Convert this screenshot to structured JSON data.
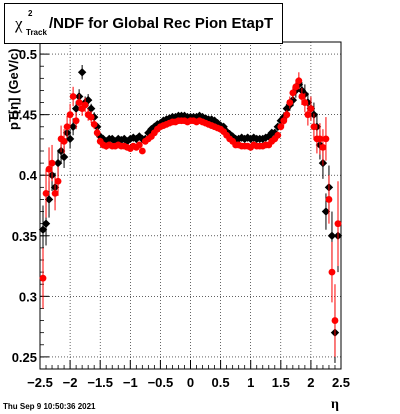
{
  "title": {
    "chi_symbol": "χ",
    "superscript": "2",
    "subscript": "Track",
    "text": "/NDF for Global Rec Pion EtapT"
  },
  "timestamp": "Thu Sep  9 10:50:36 2021",
  "chart_data": {
    "type": "scatter",
    "xlabel": "η",
    "ylabel": "pT[η] (GeV/c)",
    "xlim": [
      -2.5,
      2.5
    ],
    "ylim": [
      0.24,
      0.51
    ],
    "grid": true,
    "x_ticks": [
      "−2.5",
      "−2",
      "−1.5",
      "−1",
      "−0.5",
      "0",
      "0.5",
      "1",
      "1.5",
      "2",
      "2.5"
    ],
    "y_ticks": [
      "0.25",
      "0.3",
      "0.35",
      "0.4",
      "0.45",
      "0.5"
    ],
    "x_tick_values": [
      -2.5,
      -2,
      -1.5,
      -1,
      -0.5,
      0,
      0.5,
      1,
      1.5,
      2,
      2.5
    ],
    "y_tick_values": [
      0.25,
      0.3,
      0.35,
      0.4,
      0.45,
      0.5
    ],
    "series": [
      {
        "color": "#000000",
        "marker": "diamond",
        "x": [
          -2.45,
          -2.4,
          -2.35,
          -2.3,
          -2.25,
          -2.2,
          -2.15,
          -2.1,
          -2.05,
          -2.0,
          -1.95,
          -1.9,
          -1.85,
          -1.8,
          -1.75,
          -1.7,
          -1.65,
          -1.6,
          -1.55,
          -1.5,
          -1.45,
          -1.4,
          -1.35,
          -1.3,
          -1.25,
          -1.2,
          -1.15,
          -1.1,
          -1.05,
          -1.0,
          -0.95,
          -0.9,
          -0.85,
          -0.8,
          -0.75,
          -0.7,
          -0.65,
          -0.6,
          -0.55,
          -0.5,
          -0.45,
          -0.4,
          -0.35,
          -0.3,
          -0.25,
          -0.2,
          -0.15,
          -0.1,
          -0.05,
          0.0,
          0.05,
          0.1,
          0.15,
          0.2,
          0.25,
          0.3,
          0.35,
          0.4,
          0.45,
          0.5,
          0.55,
          0.6,
          0.65,
          0.7,
          0.75,
          0.8,
          0.85,
          0.9,
          0.95,
          1.0,
          1.05,
          1.1,
          1.15,
          1.2,
          1.25,
          1.3,
          1.35,
          1.4,
          1.45,
          1.5,
          1.55,
          1.6,
          1.65,
          1.7,
          1.75,
          1.8,
          1.85,
          1.9,
          1.95,
          2.0,
          2.05,
          2.1,
          2.15,
          2.2,
          2.25,
          2.3,
          2.35,
          2.4,
          2.45
        ],
        "y": [
          0.355,
          0.36,
          0.38,
          0.4,
          0.39,
          0.41,
          0.42,
          0.415,
          0.435,
          0.43,
          0.44,
          0.455,
          0.465,
          0.485,
          0.46,
          0.462,
          0.455,
          0.448,
          0.44,
          0.432,
          0.43,
          0.428,
          0.43,
          0.43,
          0.428,
          0.43,
          0.429,
          0.43,
          0.428,
          0.43,
          0.431,
          0.43,
          0.432,
          0.43,
          0.43,
          0.435,
          0.438,
          0.44,
          0.442,
          0.443,
          0.445,
          0.446,
          0.447,
          0.448,
          0.448,
          0.449,
          0.449,
          0.449,
          0.448,
          0.448,
          0.448,
          0.448,
          0.449,
          0.448,
          0.447,
          0.446,
          0.446,
          0.445,
          0.443,
          0.441,
          0.44,
          0.436,
          0.434,
          0.432,
          0.43,
          0.43,
          0.431,
          0.43,
          0.431,
          0.43,
          0.431,
          0.43,
          0.43,
          0.43,
          0.431,
          0.432,
          0.435,
          0.435,
          0.44,
          0.445,
          0.448,
          0.455,
          0.458,
          0.462,
          0.47,
          0.475,
          0.47,
          0.467,
          0.46,
          0.455,
          0.45,
          0.44,
          0.425,
          0.41,
          0.37,
          0.39,
          0.35,
          0.27,
          0.35
        ],
        "err": [
          0.02,
          0.018,
          0.015,
          0.013,
          0.012,
          0.011,
          0.01,
          0.009,
          0.008,
          0.008,
          0.007,
          0.006,
          0.006,
          0.006,
          0.005,
          0.005,
          0.004,
          0.004,
          0.003,
          0.003,
          0.003,
          0.002,
          0.002,
          0.002,
          0.002,
          0.002,
          0.002,
          0.002,
          0.002,
          0.002,
          0.002,
          0.002,
          0.002,
          0.002,
          0.002,
          0.002,
          0.002,
          0.002,
          0.002,
          0.002,
          0.002,
          0.002,
          0.002,
          0.002,
          0.002,
          0.002,
          0.002,
          0.002,
          0.002,
          0.002,
          0.002,
          0.002,
          0.002,
          0.002,
          0.002,
          0.002,
          0.002,
          0.002,
          0.002,
          0.002,
          0.002,
          0.002,
          0.002,
          0.002,
          0.002,
          0.002,
          0.002,
          0.002,
          0.002,
          0.002,
          0.002,
          0.002,
          0.002,
          0.002,
          0.002,
          0.002,
          0.002,
          0.003,
          0.003,
          0.003,
          0.004,
          0.004,
          0.005,
          0.005,
          0.006,
          0.006,
          0.007,
          0.008,
          0.008,
          0.009,
          0.01,
          0.011,
          0.012,
          0.013,
          0.015,
          0.018,
          0.02,
          0.025,
          0.03
        ]
      },
      {
        "color": "#ff0000",
        "marker": "circle",
        "x": [
          -2.45,
          -2.4,
          -2.35,
          -2.3,
          -2.25,
          -2.2,
          -2.15,
          -2.1,
          -2.05,
          -2.0,
          -1.95,
          -1.9,
          -1.85,
          -1.8,
          -1.75,
          -1.7,
          -1.65,
          -1.6,
          -1.55,
          -1.5,
          -1.45,
          -1.4,
          -1.35,
          -1.3,
          -1.25,
          -1.2,
          -1.15,
          -1.1,
          -1.05,
          -1.0,
          -0.95,
          -0.9,
          -0.85,
          -0.8,
          -0.75,
          -0.7,
          -0.65,
          -0.6,
          -0.55,
          -0.5,
          -0.45,
          -0.4,
          -0.35,
          -0.3,
          -0.25,
          -0.2,
          -0.15,
          -0.1,
          -0.05,
          0.0,
          0.05,
          0.1,
          0.15,
          0.2,
          0.25,
          0.3,
          0.35,
          0.4,
          0.45,
          0.5,
          0.55,
          0.6,
          0.65,
          0.7,
          0.75,
          0.8,
          0.85,
          0.9,
          0.95,
          1.0,
          1.05,
          1.1,
          1.15,
          1.2,
          1.25,
          1.3,
          1.35,
          1.4,
          1.45,
          1.5,
          1.55,
          1.6,
          1.65,
          1.7,
          1.75,
          1.8,
          1.85,
          1.9,
          1.95,
          2.0,
          2.05,
          2.1,
          2.15,
          2.2,
          2.25,
          2.3,
          2.35,
          2.4,
          2.45
        ],
        "y": [
          0.315,
          0.385,
          0.405,
          0.41,
          0.385,
          0.395,
          0.43,
          0.428,
          0.44,
          0.45,
          0.465,
          0.445,
          0.46,
          0.455,
          0.458,
          0.45,
          0.448,
          0.442,
          0.435,
          0.428,
          0.425,
          0.424,
          0.425,
          0.424,
          0.424,
          0.425,
          0.424,
          0.424,
          0.423,
          0.422,
          0.424,
          0.423,
          0.425,
          0.42,
          0.428,
          0.43,
          0.432,
          0.435,
          0.438,
          0.44,
          0.441,
          0.442,
          0.443,
          0.444,
          0.444,
          0.445,
          0.445,
          0.445,
          0.444,
          0.445,
          0.445,
          0.444,
          0.445,
          0.444,
          0.443,
          0.442,
          0.441,
          0.44,
          0.439,
          0.438,
          0.436,
          0.433,
          0.43,
          0.428,
          0.425,
          0.425,
          0.424,
          0.424,
          0.424,
          0.423,
          0.425,
          0.424,
          0.424,
          0.424,
          0.425,
          0.425,
          0.428,
          0.43,
          0.433,
          0.44,
          0.445,
          0.45,
          0.46,
          0.468,
          0.473,
          0.478,
          0.465,
          0.46,
          0.45,
          0.455,
          0.44,
          0.43,
          0.43,
          0.423,
          0.43,
          0.38,
          0.32,
          0.28,
          0.36
        ],
        "err": [
          0.025,
          0.02,
          0.018,
          0.015,
          0.014,
          0.012,
          0.011,
          0.01,
          0.009,
          0.009,
          0.008,
          0.007,
          0.007,
          0.006,
          0.006,
          0.005,
          0.005,
          0.004,
          0.004,
          0.003,
          0.003,
          0.003,
          0.002,
          0.002,
          0.002,
          0.002,
          0.002,
          0.002,
          0.002,
          0.002,
          0.002,
          0.002,
          0.002,
          0.002,
          0.002,
          0.002,
          0.002,
          0.002,
          0.002,
          0.002,
          0.002,
          0.002,
          0.002,
          0.002,
          0.002,
          0.002,
          0.002,
          0.002,
          0.002,
          0.002,
          0.002,
          0.002,
          0.002,
          0.002,
          0.002,
          0.002,
          0.002,
          0.002,
          0.002,
          0.002,
          0.002,
          0.002,
          0.002,
          0.002,
          0.002,
          0.002,
          0.002,
          0.002,
          0.002,
          0.002,
          0.002,
          0.002,
          0.002,
          0.002,
          0.002,
          0.002,
          0.002,
          0.003,
          0.003,
          0.003,
          0.004,
          0.004,
          0.005,
          0.005,
          0.006,
          0.007,
          0.007,
          0.008,
          0.009,
          0.01,
          0.011,
          0.012,
          0.013,
          0.015,
          0.018,
          0.02,
          0.025,
          0.03,
          0.035
        ]
      }
    ]
  }
}
